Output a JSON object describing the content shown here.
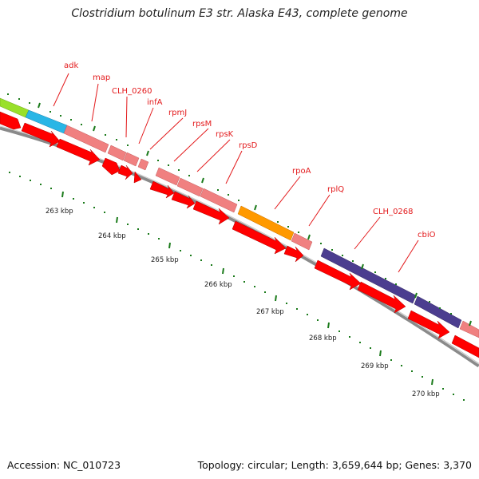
{
  "title": "Clostridium botulinum E3 str. Alaska E43, complete genome",
  "footer": {
    "accession": "Accession: NC_010723",
    "topology": "Topology: circular; Length: 3,659,644 bp; Genes: 3,370"
  },
  "colors": {
    "backbone": "#8a8a8a",
    "cds_arrow": "#ff0000",
    "gene_default": "#f08080",
    "adk_gene": "#29b6e6",
    "left_gene": "#99e02a",
    "rpoA_gene": "#ff9900",
    "cbiO_gene": "#4b3d8f",
    "tick_major": "#1a7a1a",
    "label": "#e31a1c"
  },
  "gene_labels": [
    "adk",
    "map",
    "CLH_0260",
    "infA",
    "rpmJ",
    "rpsM",
    "rpsK",
    "rpsD",
    "rpoA",
    "rplQ",
    "CLH_0268",
    "cbiO"
  ],
  "kbp_labels": [
    "263 kbp",
    "264 kbp",
    "265 kbp",
    "266 kbp",
    "267 kbp",
    "268 kbp",
    "269 kbp",
    "270 kbp"
  ]
}
